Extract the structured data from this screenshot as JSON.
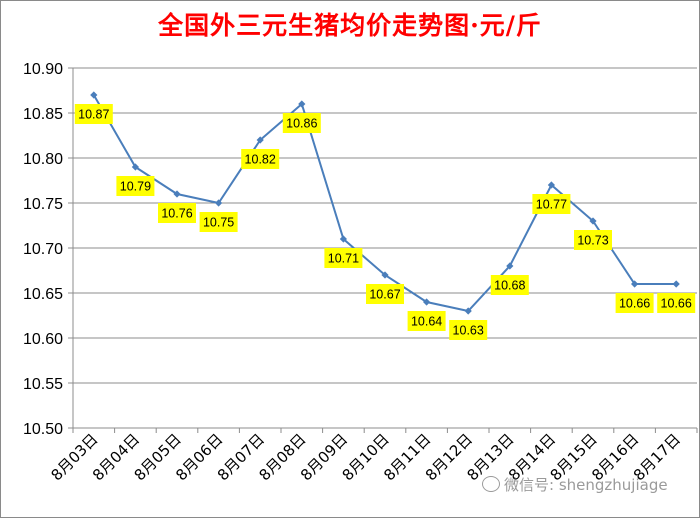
{
  "chart_data": {
    "type": "line",
    "title": "全国外三元生猪均价走势图·元/斤",
    "categories": [
      "8月03日",
      "8月04日",
      "8月05日",
      "8月06日",
      "8月07日",
      "8月08日",
      "8月09日",
      "8月10日",
      "8月11日",
      "8月12日",
      "8月13日",
      "8月14日",
      "8月15日",
      "8月16日",
      "8月17日"
    ],
    "values": [
      10.87,
      10.79,
      10.76,
      10.75,
      10.82,
      10.86,
      10.71,
      10.67,
      10.64,
      10.63,
      10.68,
      10.77,
      10.73,
      10.66,
      10.66
    ],
    "data_labels": [
      "10.87",
      "10.79",
      "10.76",
      "10.75",
      "10.82",
      "10.86",
      "10.71",
      "10.67",
      "10.64",
      "10.63",
      "10.68",
      "10.77",
      "10.73",
      "10.66",
      "10.66"
    ],
    "yticks": [
      "10.50",
      "10.55",
      "10.60",
      "10.65",
      "10.70",
      "10.75",
      "10.80",
      "10.85",
      "10.90"
    ],
    "ylim": [
      10.5,
      10.9
    ],
    "grid": true,
    "line_color": "#4a7ebb",
    "label_bg": "#ffff00",
    "title_color": "#ff0000"
  },
  "watermark": "微信号: shengzhujiage"
}
